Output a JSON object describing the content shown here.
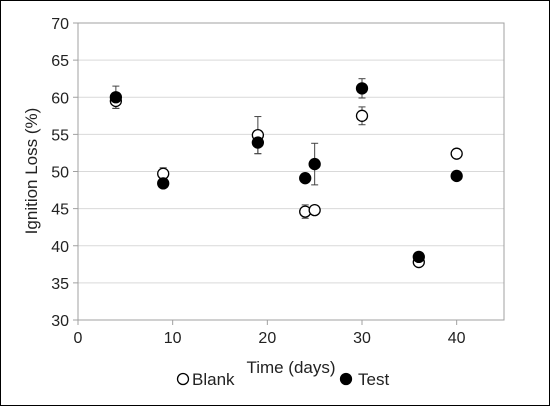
{
  "chart_data": {
    "type": "scatter",
    "title": "",
    "xlabel": "Time (days)",
    "ylabel": "Ignition Loss (%)",
    "xlim": [
      0,
      45
    ],
    "ylim": [
      30,
      70
    ],
    "xticks": [
      "0",
      "10",
      "20",
      "30",
      "40"
    ],
    "yticks": [
      "30",
      "35",
      "40",
      "45",
      "50",
      "55",
      "60",
      "65",
      "70"
    ],
    "grid": "horizontal",
    "legend": "bottom",
    "series": [
      {
        "name": "Blank",
        "marker": "open-circle",
        "color": "#000000",
        "points": [
          {
            "x": 4,
            "y": 59.5,
            "err": 1.0
          },
          {
            "x": 9,
            "y": 49.7,
            "err": 0.8
          },
          {
            "x": 19,
            "y": 54.9,
            "err": 2.5
          },
          {
            "x": 24,
            "y": 44.6,
            "err": 0.9
          },
          {
            "x": 25,
            "y": 44.8,
            "err": 0
          },
          {
            "x": 30,
            "y": 57.5,
            "err": 1.2
          },
          {
            "x": 36,
            "y": 37.8,
            "err": 0
          },
          {
            "x": 40,
            "y": 52.4,
            "err": 0
          }
        ]
      },
      {
        "name": "Test",
        "marker": "filled-circle",
        "color": "#000000",
        "points": [
          {
            "x": 4,
            "y": 60.0,
            "err": 1.5
          },
          {
            "x": 9,
            "y": 48.4,
            "err": 0
          },
          {
            "x": 19,
            "y": 53.9,
            "err": 1.5
          },
          {
            "x": 24,
            "y": 49.1,
            "err": 0
          },
          {
            "x": 25,
            "y": 51.0,
            "err": 2.8
          },
          {
            "x": 30,
            "y": 61.2,
            "err": 1.3
          },
          {
            "x": 36,
            "y": 38.5,
            "err": 0
          },
          {
            "x": 40,
            "y": 49.4,
            "err": 0
          }
        ]
      }
    ]
  }
}
